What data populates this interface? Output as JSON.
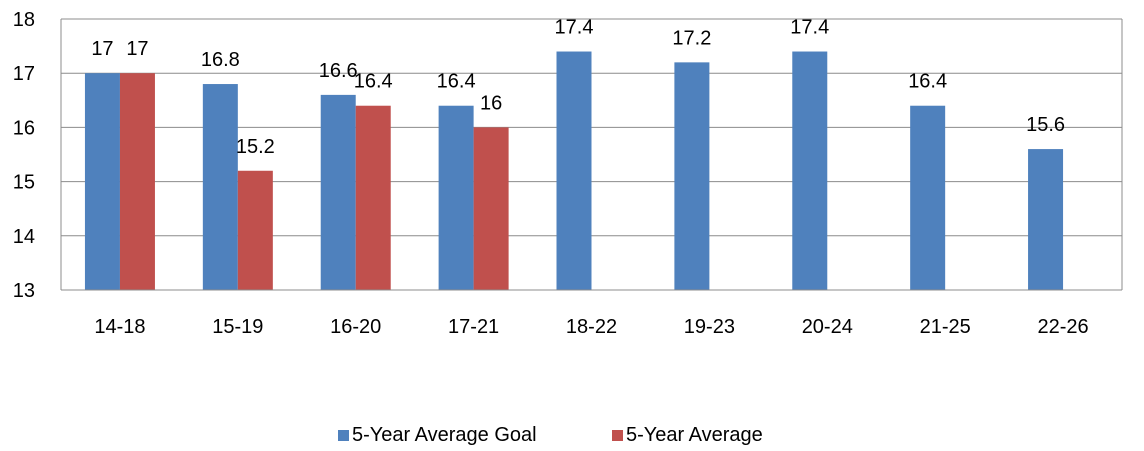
{
  "chart_data": {
    "type": "bar",
    "categories": [
      "14-18",
      "15-19",
      "16-20",
      "17-21",
      "18-22",
      "19-23",
      "20-24",
      "21-25",
      "22-26"
    ],
    "series": [
      {
        "name": "5-Year Average Goal",
        "color": "#4F81BD",
        "values": [
          17,
          16.8,
          16.6,
          16.4,
          17.4,
          17.2,
          17.4,
          16.4,
          15.6
        ],
        "labels": [
          "17",
          "16.8",
          "16.6",
          "16.4",
          "17.4",
          "17.2",
          "17.4",
          "16.4",
          "15.6"
        ]
      },
      {
        "name": "5-Year Average",
        "color": "#C0504D",
        "values": [
          17,
          15.2,
          16.4,
          16,
          null,
          null,
          null,
          null,
          null
        ],
        "labels": [
          "17",
          "15.2",
          "16.4",
          "16",
          null,
          null,
          null,
          null,
          null
        ]
      }
    ],
    "ylim": [
      13,
      18
    ],
    "yticks": [
      "13",
      "14",
      "15",
      "16",
      "17",
      "18"
    ],
    "grid": true,
    "legend": "bottom",
    "title": "",
    "xlabel": "",
    "ylabel": ""
  }
}
